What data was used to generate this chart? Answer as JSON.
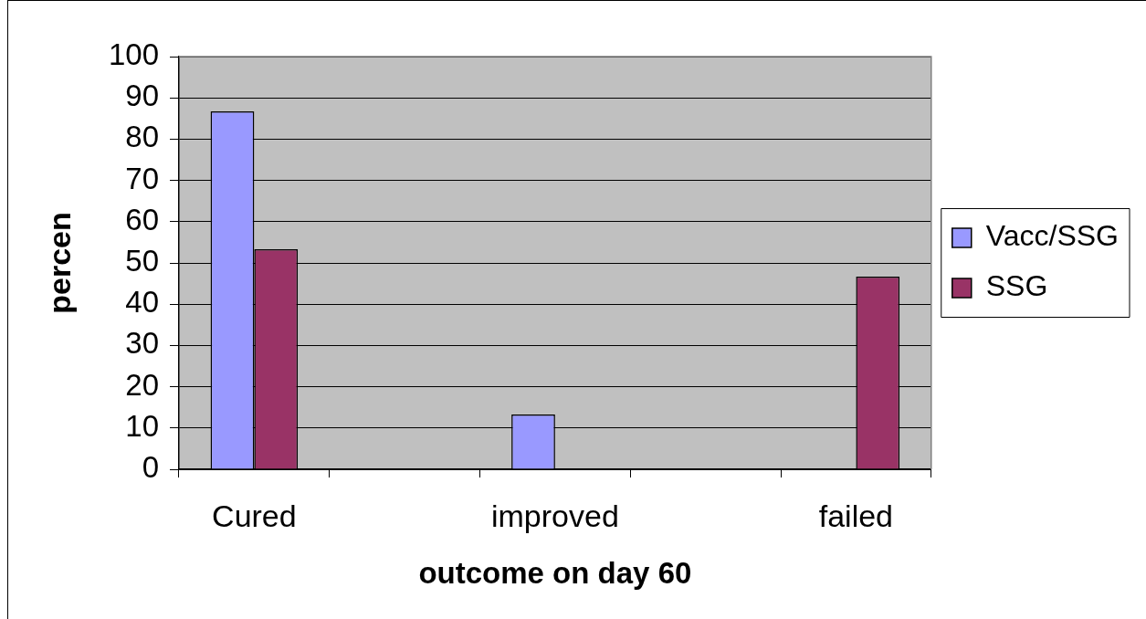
{
  "chart_data": {
    "type": "bar",
    "xlabel": "outcome on day 60",
    "ylabel": "percen",
    "categories": [
      "Cured",
      null,
      "improved",
      null,
      "failed"
    ],
    "series": [
      {
        "name": "Vacc/SSG",
        "color": "#9999ff",
        "values": [
          86.7,
          null,
          13.3,
          null,
          0
        ]
      },
      {
        "name": "SSG",
        "color": "#993366",
        "values": [
          53.3,
          null,
          0,
          null,
          46.7
        ]
      }
    ],
    "ylim": [
      0,
      100
    ],
    "yticks": [
      0,
      10,
      20,
      30,
      40,
      50,
      60,
      70,
      80,
      90,
      100
    ],
    "grid": "y",
    "legend": "right"
  }
}
